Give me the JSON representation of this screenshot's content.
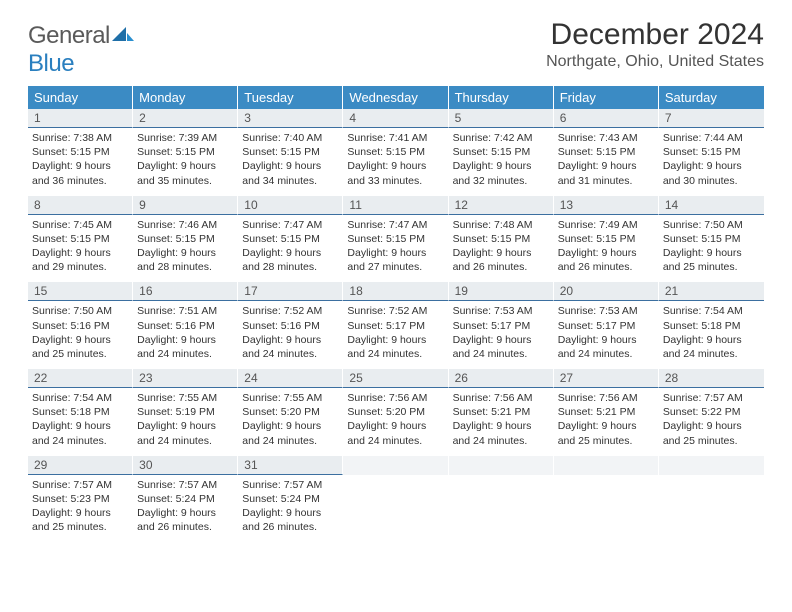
{
  "logo": {
    "general": "General",
    "blue": "Blue"
  },
  "title": "December 2024",
  "location": "Northgate, Ohio, United States",
  "colors": {
    "header_bg": "#3b8bc4",
    "header_fg": "#ffffff",
    "daynum_bg": "#e9edf0",
    "daynum_border": "#3b6fa0",
    "text": "#333333",
    "muted": "#555555"
  },
  "weekdays": [
    "Sunday",
    "Monday",
    "Tuesday",
    "Wednesday",
    "Thursday",
    "Friday",
    "Saturday"
  ],
  "weeks": [
    [
      {
        "n": "1",
        "sr": "7:38 AM",
        "ss": "5:15 PM",
        "dl": "9 hours and 36 minutes."
      },
      {
        "n": "2",
        "sr": "7:39 AM",
        "ss": "5:15 PM",
        "dl": "9 hours and 35 minutes."
      },
      {
        "n": "3",
        "sr": "7:40 AM",
        "ss": "5:15 PM",
        "dl": "9 hours and 34 minutes."
      },
      {
        "n": "4",
        "sr": "7:41 AM",
        "ss": "5:15 PM",
        "dl": "9 hours and 33 minutes."
      },
      {
        "n": "5",
        "sr": "7:42 AM",
        "ss": "5:15 PM",
        "dl": "9 hours and 32 minutes."
      },
      {
        "n": "6",
        "sr": "7:43 AM",
        "ss": "5:15 PM",
        "dl": "9 hours and 31 minutes."
      },
      {
        "n": "7",
        "sr": "7:44 AM",
        "ss": "5:15 PM",
        "dl": "9 hours and 30 minutes."
      }
    ],
    [
      {
        "n": "8",
        "sr": "7:45 AM",
        "ss": "5:15 PM",
        "dl": "9 hours and 29 minutes."
      },
      {
        "n": "9",
        "sr": "7:46 AM",
        "ss": "5:15 PM",
        "dl": "9 hours and 28 minutes."
      },
      {
        "n": "10",
        "sr": "7:47 AM",
        "ss": "5:15 PM",
        "dl": "9 hours and 28 minutes."
      },
      {
        "n": "11",
        "sr": "7:47 AM",
        "ss": "5:15 PM",
        "dl": "9 hours and 27 minutes."
      },
      {
        "n": "12",
        "sr": "7:48 AM",
        "ss": "5:15 PM",
        "dl": "9 hours and 26 minutes."
      },
      {
        "n": "13",
        "sr": "7:49 AM",
        "ss": "5:15 PM",
        "dl": "9 hours and 26 minutes."
      },
      {
        "n": "14",
        "sr": "7:50 AM",
        "ss": "5:15 PM",
        "dl": "9 hours and 25 minutes."
      }
    ],
    [
      {
        "n": "15",
        "sr": "7:50 AM",
        "ss": "5:16 PM",
        "dl": "9 hours and 25 minutes."
      },
      {
        "n": "16",
        "sr": "7:51 AM",
        "ss": "5:16 PM",
        "dl": "9 hours and 24 minutes."
      },
      {
        "n": "17",
        "sr": "7:52 AM",
        "ss": "5:16 PM",
        "dl": "9 hours and 24 minutes."
      },
      {
        "n": "18",
        "sr": "7:52 AM",
        "ss": "5:17 PM",
        "dl": "9 hours and 24 minutes."
      },
      {
        "n": "19",
        "sr": "7:53 AM",
        "ss": "5:17 PM",
        "dl": "9 hours and 24 minutes."
      },
      {
        "n": "20",
        "sr": "7:53 AM",
        "ss": "5:17 PM",
        "dl": "9 hours and 24 minutes."
      },
      {
        "n": "21",
        "sr": "7:54 AM",
        "ss": "5:18 PM",
        "dl": "9 hours and 24 minutes."
      }
    ],
    [
      {
        "n": "22",
        "sr": "7:54 AM",
        "ss": "5:18 PM",
        "dl": "9 hours and 24 minutes."
      },
      {
        "n": "23",
        "sr": "7:55 AM",
        "ss": "5:19 PM",
        "dl": "9 hours and 24 minutes."
      },
      {
        "n": "24",
        "sr": "7:55 AM",
        "ss": "5:20 PM",
        "dl": "9 hours and 24 minutes."
      },
      {
        "n": "25",
        "sr": "7:56 AM",
        "ss": "5:20 PM",
        "dl": "9 hours and 24 minutes."
      },
      {
        "n": "26",
        "sr": "7:56 AM",
        "ss": "5:21 PM",
        "dl": "9 hours and 24 minutes."
      },
      {
        "n": "27",
        "sr": "7:56 AM",
        "ss": "5:21 PM",
        "dl": "9 hours and 25 minutes."
      },
      {
        "n": "28",
        "sr": "7:57 AM",
        "ss": "5:22 PM",
        "dl": "9 hours and 25 minutes."
      }
    ],
    [
      {
        "n": "29",
        "sr": "7:57 AM",
        "ss": "5:23 PM",
        "dl": "9 hours and 25 minutes."
      },
      {
        "n": "30",
        "sr": "7:57 AM",
        "ss": "5:24 PM",
        "dl": "9 hours and 26 minutes."
      },
      {
        "n": "31",
        "sr": "7:57 AM",
        "ss": "5:24 PM",
        "dl": "9 hours and 26 minutes."
      },
      null,
      null,
      null,
      null
    ]
  ],
  "labels": {
    "sunrise": "Sunrise:",
    "sunset": "Sunset:",
    "daylight": "Daylight:"
  }
}
